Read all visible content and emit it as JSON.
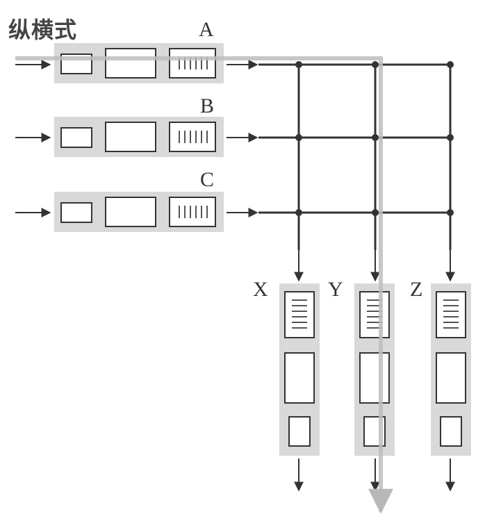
{
  "title": "纵横式",
  "rows": [
    {
      "label": "A"
    },
    {
      "label": "B"
    },
    {
      "label": "C"
    }
  ],
  "columns": [
    {
      "label": "X"
    },
    {
      "label": "Y"
    },
    {
      "label": "Z"
    }
  ],
  "colors": {
    "line": "#333333",
    "box_fill": "#d9d9d9",
    "highlight_path": "#bdbdbd"
  }
}
